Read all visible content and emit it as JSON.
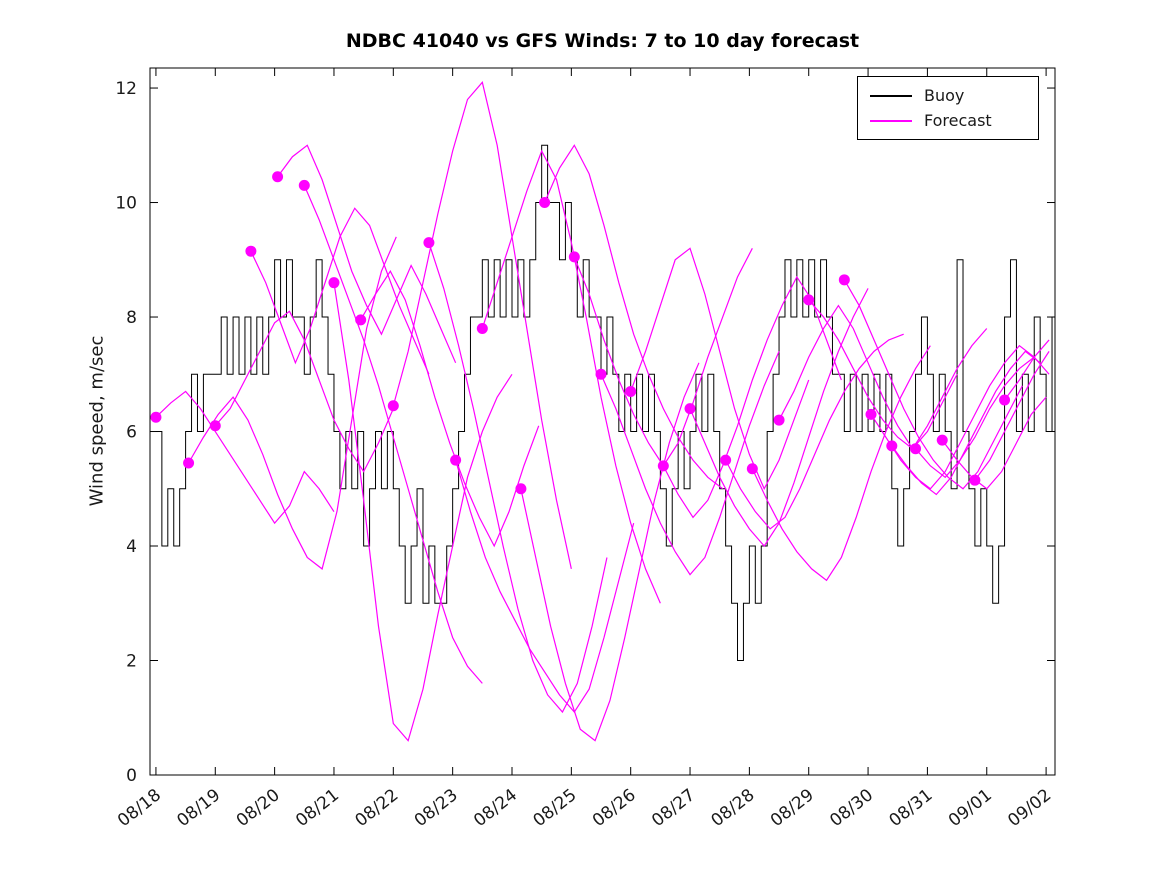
{
  "chart_data": {
    "type": "line",
    "title": "NDBC 41040 vs GFS Winds: 7 to 10 day forecast",
    "ylabel": "Wind speed, m/sec",
    "xlabel": "",
    "ylim": [
      0,
      12.35
    ],
    "xlim": [
      -0.1,
      15.15
    ],
    "grid": false,
    "y_ticks": [
      0,
      2,
      4,
      6,
      8,
      10,
      12
    ],
    "x_ticks": [
      "08/18",
      "08/19",
      "08/20",
      "08/21",
      "08/22",
      "08/23",
      "08/24",
      "08/25",
      "08/26",
      "08/27",
      "08/28",
      "08/29",
      "08/30",
      "08/31",
      "09/01",
      "09/02"
    ],
    "colors": {
      "buoy": "#000000",
      "forecast": "#FF00FF",
      "axis": "#000000"
    },
    "legend": {
      "position": "top-right",
      "entries": [
        {
          "label": "Buoy",
          "color": "#000000"
        },
        {
          "label": "Forecast",
          "color": "#FF00FF"
        }
      ]
    },
    "buoy": {
      "x_start": 0,
      "dx": 0.1,
      "values": [
        6,
        4,
        5,
        4,
        5,
        6,
        7,
        6,
        7,
        7,
        7,
        8,
        7,
        8,
        7,
        8,
        7,
        8,
        7,
        8,
        9,
        8,
        9,
        8,
        8,
        7,
        8,
        9,
        8,
        7,
        6,
        5,
        6,
        5,
        6,
        4,
        5,
        6,
        5,
        6,
        5,
        4,
        3,
        4,
        5,
        3,
        4,
        3,
        3,
        4,
        5,
        6,
        7,
        8,
        8,
        9,
        8,
        9,
        8,
        9,
        8,
        9,
        8,
        9,
        10,
        11,
        10,
        10,
        9,
        10,
        9,
        8,
        9,
        8,
        8,
        7,
        8,
        7,
        6,
        7,
        6,
        7,
        6,
        7,
        6,
        5,
        4,
        5,
        6,
        5,
        6,
        7,
        6,
        7,
        6,
        5,
        4,
        3,
        2,
        3,
        4,
        3,
        4,
        6,
        7,
        8,
        9,
        8,
        9,
        8,
        9,
        8,
        9,
        8,
        7,
        7,
        6,
        7,
        6,
        7,
        6,
        7,
        6,
        7,
        5,
        4,
        5,
        6,
        7,
        8,
        7,
        6,
        7,
        6,
        5,
        9,
        6,
        5,
        4,
        5,
        4,
        3,
        4,
        8,
        9,
        6,
        7,
        6,
        8,
        7,
        6,
        8
      ]
    },
    "forecast_runs": [
      {
        "x_start": 0.0,
        "dx": 0.25,
        "values": [
          6.25,
          6.5,
          6.7,
          6.4,
          6.0,
          5.6,
          5.2,
          4.8,
          4.4,
          4.7,
          5.3,
          5.0,
          4.6
        ]
      },
      {
        "x_start": 0.55,
        "dx": 0.25,
        "values": [
          5.45,
          5.9,
          6.3,
          6.6,
          6.2,
          5.6,
          4.9,
          4.3,
          3.8,
          3.6,
          4.6,
          6.2,
          7.8,
          8.8,
          9.4
        ]
      },
      {
        "x_start": 1.0,
        "dx": 0.25,
        "values": [
          6.1,
          6.4,
          6.9,
          7.4,
          7.9,
          8.1,
          7.6,
          6.9,
          6.2,
          5.7,
          5.3,
          5.8,
          6.4
        ]
      },
      {
        "x_start": 1.6,
        "dx": 0.25,
        "values": [
          9.15,
          8.6,
          7.9,
          7.2,
          7.8,
          8.6,
          9.4,
          9.9,
          9.6,
          8.9,
          8.2,
          7.6,
          7.0
        ]
      },
      {
        "x_start": 2.05,
        "dx": 0.25,
        "values": [
          10.45,
          10.8,
          11.0,
          10.4,
          9.6,
          8.8,
          8.2,
          7.7,
          8.3,
          8.9,
          8.4,
          7.8,
          7.2
        ]
      },
      {
        "x_start": 2.5,
        "dx": 0.25,
        "values": [
          10.3,
          9.7,
          9.0,
          8.3,
          7.6,
          6.8,
          5.9,
          5.0,
          4.1,
          3.2,
          2.4,
          1.9,
          1.6
        ]
      },
      {
        "x_start": 3.0,
        "dx": 0.25,
        "values": [
          8.6,
          6.9,
          4.8,
          2.6,
          0.9,
          0.6,
          1.5,
          2.8,
          4.0,
          5.2,
          6.0,
          6.6,
          7.0
        ]
      },
      {
        "x_start": 3.45,
        "dx": 0.25,
        "values": [
          7.95,
          8.4,
          8.8,
          8.3,
          7.5,
          6.6,
          5.8,
          5.1,
          4.5,
          4.0,
          4.6,
          5.4,
          6.1
        ]
      },
      {
        "x_start": 4.0,
        "dx": 0.25,
        "values": [
          6.45,
          7.4,
          8.6,
          9.8,
          10.9,
          11.8,
          12.1,
          11.0,
          9.4,
          7.8,
          6.2,
          4.8,
          3.6
        ]
      },
      {
        "x_start": 4.6,
        "dx": 0.25,
        "values": [
          9.3,
          8.5,
          7.5,
          6.4,
          5.2,
          4.0,
          2.9,
          2.0,
          1.4,
          1.1,
          1.6,
          2.6,
          3.8
        ]
      },
      {
        "x_start": 5.05,
        "dx": 0.25,
        "values": [
          5.5,
          4.6,
          3.8,
          3.2,
          2.7,
          2.2,
          1.8,
          1.4,
          1.1,
          1.5,
          2.4,
          3.4,
          4.4
        ]
      },
      {
        "x_start": 5.5,
        "dx": 0.25,
        "values": [
          7.8,
          8.6,
          9.4,
          10.2,
          10.9,
          10.4,
          9.3,
          8.0,
          6.6,
          5.4,
          4.4,
          3.6,
          3.0
        ]
      },
      {
        "x_start": 6.15,
        "dx": 0.25,
        "values": [
          5.0,
          3.8,
          2.6,
          1.6,
          0.8,
          0.6,
          1.3,
          2.4,
          3.6,
          4.8,
          5.8,
          6.6,
          7.2
        ]
      },
      {
        "x_start": 6.55,
        "dx": 0.25,
        "values": [
          10.0,
          10.6,
          11.0,
          10.5,
          9.6,
          8.6,
          7.7,
          7.0,
          6.4,
          5.9,
          5.5,
          5.2,
          5.0
        ]
      },
      {
        "x_start": 7.05,
        "dx": 0.25,
        "values": [
          9.05,
          8.4,
          7.6,
          6.9,
          6.3,
          5.8,
          5.4,
          5.8,
          6.5,
          7.3,
          8.0,
          8.7,
          9.2
        ]
      },
      {
        "x_start": 7.5,
        "dx": 0.25,
        "values": [
          7.0,
          6.4,
          5.7,
          5.0,
          4.4,
          3.9,
          3.5,
          3.8,
          4.5,
          5.3,
          6.1,
          6.8,
          7.4
        ]
      },
      {
        "x_start": 8.0,
        "dx": 0.25,
        "values": [
          6.7,
          7.4,
          8.2,
          9.0,
          9.2,
          8.4,
          7.4,
          6.4,
          5.6,
          5.0,
          5.5,
          6.2,
          6.9
        ]
      },
      {
        "x_start": 8.55,
        "dx": 0.25,
        "values": [
          5.4,
          4.9,
          4.5,
          4.8,
          5.4,
          6.1,
          6.9,
          7.6,
          8.2,
          8.7,
          8.3,
          7.6,
          6.9
        ]
      },
      {
        "x_start": 9.0,
        "dx": 0.25,
        "values": [
          6.4,
          5.8,
          5.2,
          4.7,
          4.3,
          4.0,
          4.4,
          5.1,
          5.9,
          6.7,
          7.4,
          8.0,
          8.5
        ]
      },
      {
        "x_start": 9.6,
        "dx": 0.25,
        "values": [
          5.5,
          5.0,
          4.6,
          4.3,
          4.5,
          5.0,
          5.6,
          6.2,
          6.7,
          7.1,
          7.4,
          7.6,
          7.7
        ]
      },
      {
        "x_start": 10.05,
        "dx": 0.25,
        "values": [
          5.35,
          4.8,
          4.3,
          3.9,
          3.6,
          3.4,
          3.8,
          4.5,
          5.3,
          6.0,
          6.6,
          7.1,
          7.5
        ]
      },
      {
        "x_start": 10.5,
        "dx": 0.25,
        "values": [
          6.2,
          6.7,
          7.3,
          7.8,
          8.2,
          7.8,
          7.2,
          6.6,
          6.1,
          5.7,
          6.0,
          6.5,
          7.0
        ]
      },
      {
        "x_start": 11.0,
        "dx": 0.25,
        "values": [
          8.3,
          8.0,
          7.6,
          7.1,
          6.6,
          6.2,
          5.9,
          5.7,
          6.1,
          6.6,
          7.1,
          7.5,
          7.8
        ]
      },
      {
        "x_start": 11.6,
        "dx": 0.25,
        "values": [
          8.65,
          8.2,
          7.6,
          7.0,
          6.4,
          5.9,
          5.5,
          5.2,
          5.0,
          5.3,
          5.8,
          6.3,
          6.8
        ]
      },
      {
        "x_start": 12.05,
        "dx": 0.25,
        "values": [
          6.3,
          5.9,
          5.5,
          5.2,
          5.0,
          5.3,
          5.8,
          6.3,
          6.8,
          7.2,
          7.5,
          7.3,
          7.0
        ]
      },
      {
        "x_start": 12.4,
        "dx": 0.25,
        "values": [
          5.75,
          5.4,
          5.1,
          4.9,
          5.2,
          5.7,
          6.2,
          6.7,
          7.1,
          7.4,
          7.2
        ]
      },
      {
        "x_start": 12.8,
        "dx": 0.25,
        "values": [
          5.7,
          5.4,
          5.2,
          5.5,
          5.9,
          6.4,
          6.8,
          7.1,
          7.3
        ]
      },
      {
        "x_start": 13.25,
        "dx": 0.25,
        "values": [
          5.85,
          5.5,
          5.2,
          5.0,
          5.3,
          5.8,
          6.3,
          6.6
        ]
      },
      {
        "x_start": 13.8,
        "dx": 0.25,
        "values": [
          5.15,
          5.5,
          6.0,
          6.5,
          7.0,
          7.4
        ]
      },
      {
        "x_start": 14.3,
        "dx": 0.25,
        "values": [
          6.55,
          6.9,
          7.3,
          7.6
        ]
      }
    ],
    "forecast_markers": [
      [
        0.0,
        6.25
      ],
      [
        0.55,
        5.45
      ],
      [
        1.0,
        6.1
      ],
      [
        1.6,
        9.15
      ],
      [
        2.05,
        10.45
      ],
      [
        2.5,
        10.3
      ],
      [
        3.0,
        8.6
      ],
      [
        3.45,
        7.95
      ],
      [
        4.0,
        6.45
      ],
      [
        4.6,
        9.3
      ],
      [
        5.05,
        5.5
      ],
      [
        5.5,
        7.8
      ],
      [
        6.15,
        5.0
      ],
      [
        6.55,
        10.0
      ],
      [
        7.05,
        9.05
      ],
      [
        7.5,
        7.0
      ],
      [
        8.0,
        6.7
      ],
      [
        8.55,
        5.4
      ],
      [
        9.0,
        6.4
      ],
      [
        9.6,
        5.5
      ],
      [
        10.05,
        5.35
      ],
      [
        10.5,
        6.2
      ],
      [
        11.0,
        8.3
      ],
      [
        11.6,
        8.65
      ],
      [
        12.05,
        6.3
      ],
      [
        12.4,
        5.75
      ],
      [
        12.8,
        5.7
      ],
      [
        13.25,
        5.85
      ],
      [
        13.8,
        5.15
      ],
      [
        14.3,
        6.55
      ]
    ]
  }
}
